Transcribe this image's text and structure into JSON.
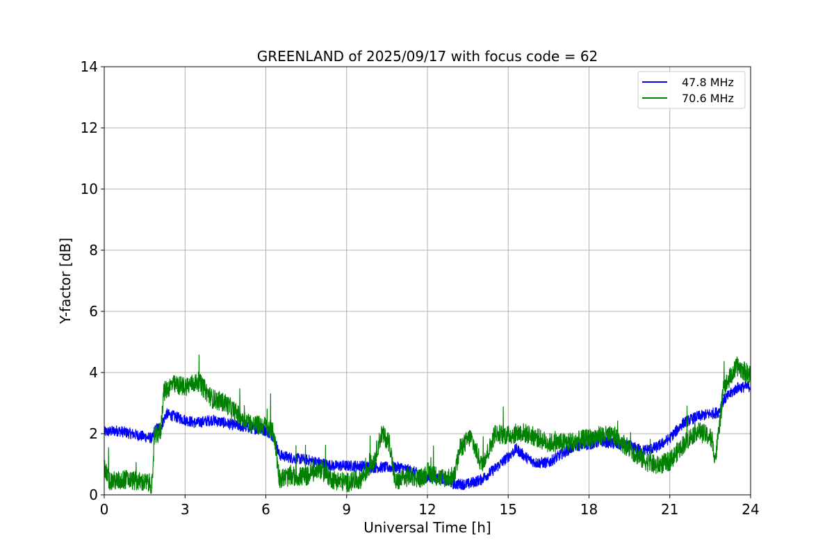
{
  "chart_data": {
    "type": "line",
    "title": "GREENLAND of 2025/09/17 with focus code = 62",
    "xlabel": "Universal Time [h]",
    "ylabel": "Y-factor [dB]",
    "xlim": [
      0,
      24
    ],
    "ylim": [
      0,
      14
    ],
    "xticks": [
      0,
      3,
      6,
      9,
      12,
      15,
      18,
      21,
      24
    ],
    "yticks": [
      0,
      2,
      4,
      6,
      8,
      10,
      12,
      14
    ],
    "grid": true,
    "legend_position": "top-right",
    "series": [
      {
        "name": "47.8 MHz",
        "color": "#0000ff",
        "noise_db": 0.18,
        "points": [
          [
            0.0,
            2.05
          ],
          [
            0.5,
            2.1
          ],
          [
            1.0,
            2.0
          ],
          [
            1.5,
            1.9
          ],
          [
            1.8,
            1.85
          ],
          [
            1.9,
            2.15
          ],
          [
            2.1,
            2.2
          ],
          [
            2.3,
            2.65
          ],
          [
            3.0,
            2.45
          ],
          [
            3.4,
            2.35
          ],
          [
            4.0,
            2.45
          ],
          [
            4.5,
            2.35
          ],
          [
            5.0,
            2.25
          ],
          [
            6.0,
            2.1
          ],
          [
            6.3,
            1.9
          ],
          [
            6.5,
            1.3
          ],
          [
            7.0,
            1.2
          ],
          [
            7.5,
            1.15
          ],
          [
            8.0,
            1.05
          ],
          [
            8.5,
            0.95
          ],
          [
            9.0,
            0.95
          ],
          [
            9.5,
            0.95
          ],
          [
            10.0,
            0.9
          ],
          [
            11.0,
            0.9
          ],
          [
            11.5,
            0.75
          ],
          [
            12.0,
            0.55
          ],
          [
            12.5,
            0.55
          ],
          [
            13.0,
            0.35
          ],
          [
            13.5,
            0.35
          ],
          [
            14.0,
            0.5
          ],
          [
            14.5,
            0.85
          ],
          [
            15.0,
            1.25
          ],
          [
            15.3,
            1.5
          ],
          [
            15.7,
            1.2
          ],
          [
            16.0,
            1.05
          ],
          [
            16.5,
            1.05
          ],
          [
            17.0,
            1.35
          ],
          [
            17.5,
            1.6
          ],
          [
            18.0,
            1.65
          ],
          [
            18.5,
            1.75
          ],
          [
            19.0,
            1.65
          ],
          [
            19.5,
            1.6
          ],
          [
            20.0,
            1.45
          ],
          [
            20.5,
            1.55
          ],
          [
            21.0,
            1.85
          ],
          [
            21.5,
            2.35
          ],
          [
            22.0,
            2.55
          ],
          [
            22.5,
            2.65
          ],
          [
            22.8,
            2.7
          ],
          [
            23.0,
            3.1
          ],
          [
            23.5,
            3.5
          ],
          [
            24.0,
            3.55
          ]
        ]
      },
      {
        "name": "70.6 MHz",
        "color": "#008000",
        "noise_db": 0.32,
        "points": [
          [
            0.0,
            0.9
          ],
          [
            0.2,
            0.45
          ],
          [
            0.5,
            0.45
          ],
          [
            0.8,
            0.5
          ],
          [
            1.2,
            0.45
          ],
          [
            1.8,
            0.35
          ],
          [
            1.85,
            1.85
          ],
          [
            2.1,
            2.1
          ],
          [
            2.2,
            3.35
          ],
          [
            2.5,
            3.6
          ],
          [
            3.0,
            3.55
          ],
          [
            3.5,
            3.7
          ],
          [
            4.0,
            3.15
          ],
          [
            4.5,
            3.0
          ],
          [
            5.0,
            2.6
          ],
          [
            5.5,
            2.3
          ],
          [
            6.0,
            2.25
          ],
          [
            6.3,
            2.0
          ],
          [
            6.5,
            0.55
          ],
          [
            7.0,
            0.6
          ],
          [
            7.5,
            0.6
          ],
          [
            8.0,
            0.85
          ],
          [
            8.5,
            0.5
          ],
          [
            9.0,
            0.4
          ],
          [
            9.5,
            0.5
          ],
          [
            10.0,
            1.1
          ],
          [
            10.3,
            2.0
          ],
          [
            10.6,
            1.7
          ],
          [
            10.8,
            0.4
          ],
          [
            11.3,
            0.6
          ],
          [
            11.8,
            0.55
          ],
          [
            12.0,
            0.75
          ],
          [
            12.5,
            0.55
          ],
          [
            13.0,
            0.6
          ],
          [
            13.2,
            1.5
          ],
          [
            13.6,
            1.9
          ],
          [
            14.0,
            1.0
          ],
          [
            14.3,
            1.5
          ],
          [
            14.5,
            2.0
          ],
          [
            15.0,
            1.95
          ],
          [
            15.5,
            2.05
          ],
          [
            16.0,
            1.9
          ],
          [
            16.5,
            1.7
          ],
          [
            17.0,
            1.7
          ],
          [
            17.5,
            1.75
          ],
          [
            18.0,
            1.85
          ],
          [
            18.5,
            1.95
          ],
          [
            19.0,
            1.9
          ],
          [
            19.5,
            1.5
          ],
          [
            20.0,
            1.15
          ],
          [
            20.5,
            0.95
          ],
          [
            21.0,
            1.1
          ],
          [
            21.5,
            1.65
          ],
          [
            22.0,
            2.1
          ],
          [
            22.5,
            1.9
          ],
          [
            22.7,
            1.2
          ],
          [
            22.9,
            2.7
          ],
          [
            23.0,
            3.5
          ],
          [
            23.5,
            4.2
          ],
          [
            24.0,
            3.9
          ]
        ]
      }
    ]
  }
}
